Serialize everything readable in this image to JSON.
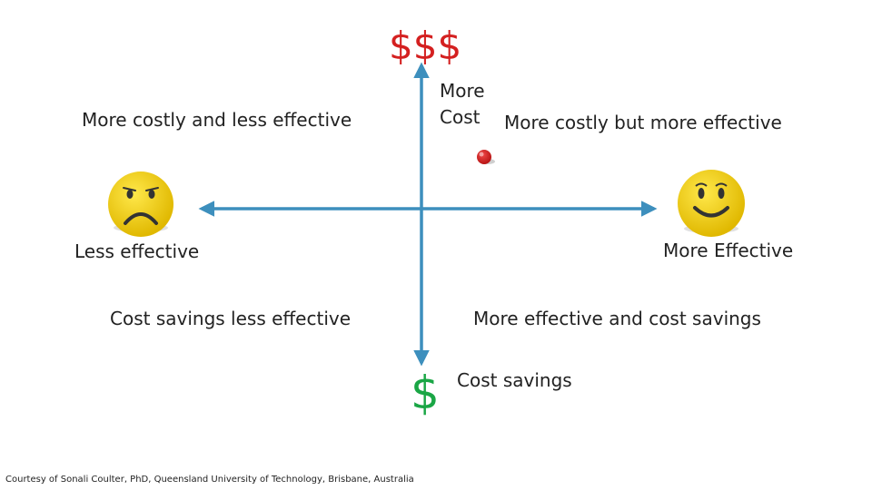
{
  "labels": {
    "cost_high_symbol": "$$$",
    "cost_low_symbol": "$",
    "more_cost_line1": "More",
    "more_cost_line2": "Cost",
    "quadrant_top_left": "More costly and less effective",
    "quadrant_top_right": "More costly but more effective",
    "quadrant_bottom_left": "Cost savings less effective",
    "quadrant_bottom_right": "More effective and cost savings",
    "axis_left": "Less effective",
    "axis_right": "More Effective",
    "axis_bottom": "Cost savings"
  },
  "credit": "Courtesy of Sonali Coulter, PhD, Queensland University of Technology, Brisbane, Australia",
  "icons": {
    "left_face": "sad-face-icon",
    "right_face": "happy-face-icon",
    "marker": "red-dot-marker"
  },
  "colors": {
    "axis": "#3d8fbd",
    "cost_high": "#d42020",
    "cost_low": "#1aa645",
    "face_fill": "#f5d50a",
    "marker": "#d62828"
  }
}
